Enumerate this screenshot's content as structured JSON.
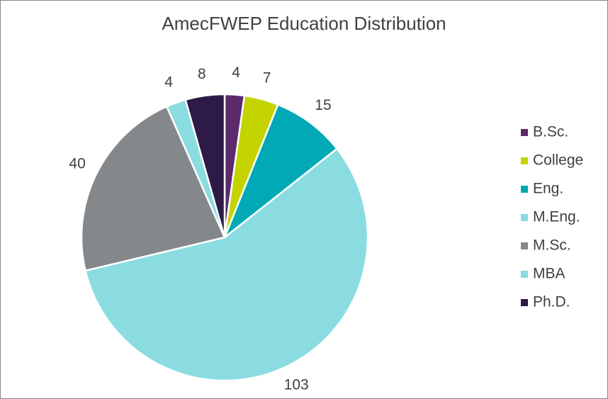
{
  "chart_data": {
    "type": "pie",
    "title": "AmecFWEP Education Distribution",
    "categories": [
      "B.Sc.",
      "College",
      "Eng.",
      "M.Eng.",
      "M.Sc.",
      "MBA",
      "Ph.D."
    ],
    "values": [
      4,
      7,
      15,
      103,
      40,
      4,
      8
    ],
    "colors": [
      "#5b2a6b",
      "#c3d400",
      "#00a9b5",
      "#8adce0",
      "#85888a",
      "#8adce0",
      "#2e1a47"
    ],
    "legend": "right"
  }
}
